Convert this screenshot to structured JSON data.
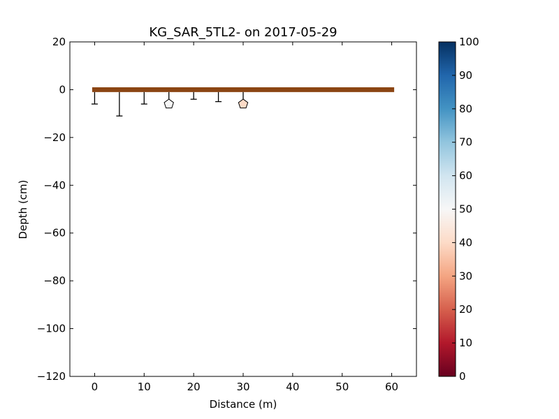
{
  "chart_data": {
    "type": "scatter",
    "title": "KG_SAR_5TL2-  on 2017-05-29",
    "xlabel": "Distance (m)",
    "ylabel": "Depth (cm)",
    "xlim": [
      -5,
      65
    ],
    "ylim": [
      -120,
      20
    ],
    "xticks": [
      0,
      10,
      20,
      30,
      40,
      50,
      60
    ],
    "yticks": [
      20,
      0,
      -20,
      -40,
      -60,
      -80,
      -100,
      -120
    ],
    "grid": false,
    "ground_surface": {
      "x_start": -0.5,
      "x_end": 60.5,
      "depth_top": 1,
      "depth_bottom": -1,
      "color": "#8B4513"
    },
    "probes": [
      {
        "x": 0,
        "depth": -6,
        "value": null
      },
      {
        "x": 5,
        "depth": -11,
        "value": null
      },
      {
        "x": 10,
        "depth": -6,
        "value": null
      },
      {
        "x": 15,
        "depth": -6,
        "value": 50,
        "marker": "pentagon"
      },
      {
        "x": 20,
        "depth": -4,
        "value": null
      },
      {
        "x": 25,
        "depth": -5,
        "value": null
      },
      {
        "x": 30,
        "depth": -6,
        "value": 40,
        "marker": "pentagon"
      }
    ],
    "colorbar": {
      "colormap": "RdBu",
      "min": 0,
      "max": 100,
      "ticks": [
        0,
        10,
        20,
        30,
        40,
        50,
        60,
        70,
        80,
        90,
        100
      ]
    }
  }
}
